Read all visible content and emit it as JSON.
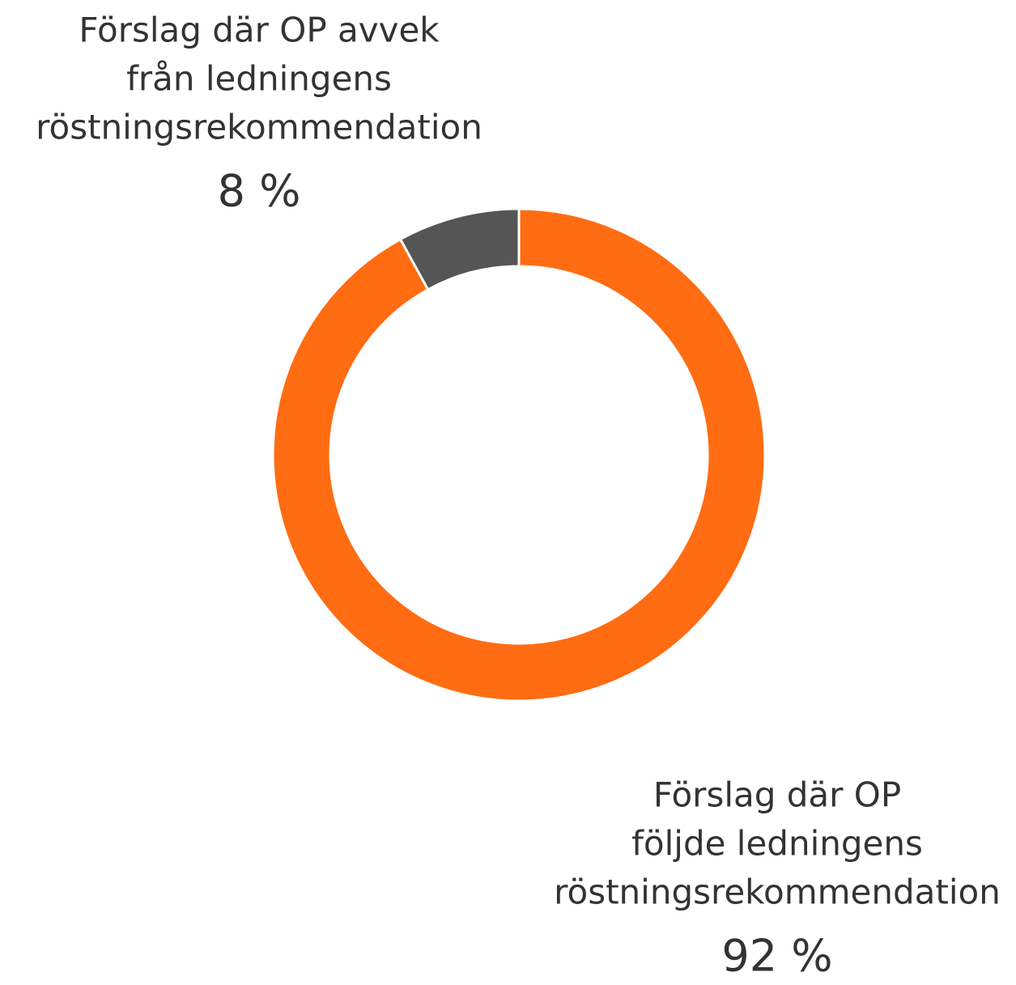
{
  "chart_data": {
    "type": "donut",
    "categories": [
      [
        "Förslag där OP",
        "följde ledningens",
        "röstningsrekommendation"
      ],
      [
        "Förslag där OP avvek",
        "från ledningens",
        "röstningsrekommendation"
      ]
    ],
    "values": [
      92,
      8
    ],
    "value_labels": [
      "92 %",
      "8 %"
    ],
    "colors": [
      "#ff6c12",
      "#555555"
    ]
  }
}
